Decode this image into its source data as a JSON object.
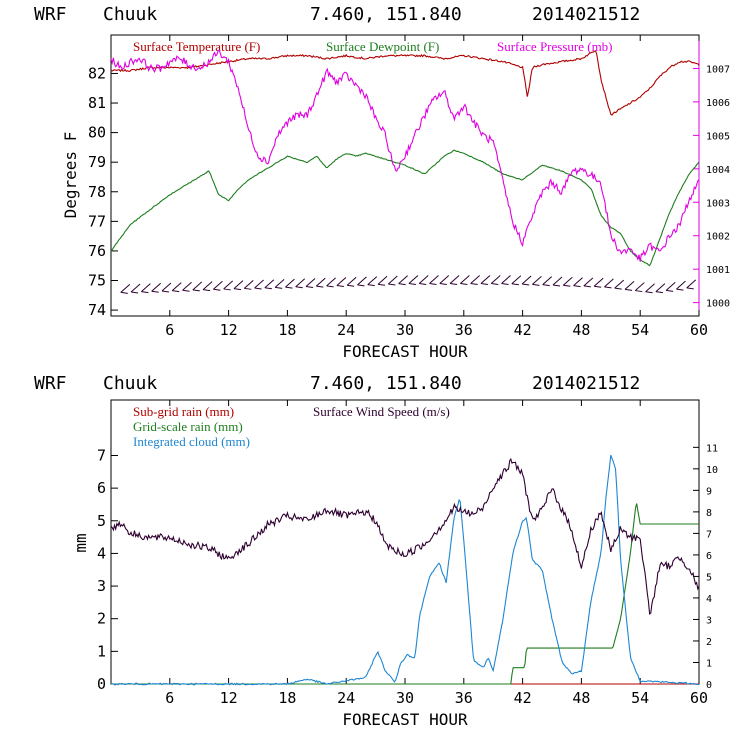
{
  "colors": {
    "temp": "#b00000",
    "dew": "#1e7d1e",
    "pressure": "#e000e0",
    "wind": "#2e0030",
    "subgrid": "#b00000",
    "gridscale": "#1e7d1e",
    "cloud": "#1f86d2"
  },
  "chart_data": [
    {
      "type": "line",
      "model_label": "WRF",
      "station": "Chuuk",
      "coords": "7.460, 151.840",
      "init_time": "2014021512",
      "xlabel": "FORECAST HOUR",
      "ylabel": "Degrees F",
      "xlim": [
        0,
        60
      ],
      "ylim": [
        73.8,
        83.3
      ],
      "y2lim": [
        999.6,
        1008.0
      ],
      "xticks": [
        "6",
        "12",
        "18",
        "24",
        "30",
        "36",
        "42",
        "48",
        "54",
        "60"
      ],
      "yticks": [
        "74",
        "75",
        "76",
        "77",
        "78",
        "79",
        "80",
        "81",
        "82"
      ],
      "y2ticks": [
        "1000",
        "1001",
        "1002",
        "1003",
        "1004",
        "1005",
        "1006",
        "1007"
      ],
      "legend": [
        "Surface Temperature (F)",
        "Surface Dewpoint (F)",
        "Surface Pressure (mb)"
      ],
      "series": [
        {
          "name": "Surface Temperature (F)",
          "axis": "left",
          "x": [
            0,
            2,
            4,
            6,
            8,
            10,
            12,
            14,
            16,
            18,
            20,
            22,
            24,
            26,
            28,
            30,
            32,
            34,
            36,
            38,
            40,
            42,
            42.5,
            43,
            44,
            46,
            48,
            49.5,
            50,
            51,
            52,
            53,
            54,
            55,
            56,
            57,
            58,
            59,
            60
          ],
          "values": [
            82.1,
            82.1,
            82.2,
            82.2,
            82.2,
            82.3,
            82.4,
            82.5,
            82.5,
            82.6,
            82.6,
            82.5,
            82.6,
            82.5,
            82.6,
            82.6,
            82.6,
            82.5,
            82.6,
            82.5,
            82.4,
            82.2,
            81.2,
            82.2,
            82.3,
            82.4,
            82.5,
            82.8,
            81.8,
            80.6,
            80.8,
            81.0,
            81.2,
            81.5,
            81.9,
            82.2,
            82.4,
            82.4,
            82.3
          ]
        },
        {
          "name": "Surface Dewpoint (F)",
          "axis": "left",
          "x": [
            0,
            2,
            4,
            6,
            8,
            10,
            11,
            12,
            13,
            14,
            16,
            18,
            19,
            20,
            21,
            22,
            23,
            24,
            25,
            26,
            28,
            30,
            32,
            34,
            35,
            36,
            38,
            40,
            42,
            44,
            46,
            48,
            49,
            50,
            51,
            52,
            53,
            54,
            55,
            56,
            57,
            58,
            59,
            60
          ],
          "values": [
            76.0,
            76.9,
            77.4,
            77.9,
            78.3,
            78.7,
            77.9,
            77.7,
            78.1,
            78.4,
            78.8,
            79.2,
            79.1,
            79.0,
            79.2,
            78.8,
            79.1,
            79.3,
            79.2,
            79.3,
            79.1,
            78.9,
            78.6,
            79.2,
            79.4,
            79.3,
            79.0,
            78.6,
            78.4,
            78.9,
            78.7,
            78.4,
            78.1,
            77.2,
            76.8,
            76.6,
            76.0,
            75.7,
            75.5,
            76.4,
            77.3,
            78.0,
            78.6,
            79.0
          ]
        },
        {
          "name": "Surface Pressure (mb)",
          "axis": "right",
          "x": [
            0,
            1,
            2,
            3,
            4,
            5,
            6,
            7,
            8,
            9,
            10,
            11,
            12,
            13,
            14,
            15,
            16,
            17,
            18,
            19,
            20,
            21,
            22,
            23,
            24,
            25,
            26,
            27,
            28,
            29,
            30,
            31,
            32,
            33,
            34,
            35,
            36,
            37,
            38,
            39,
            40,
            41,
            42,
            43,
            44,
            45,
            46,
            47,
            48,
            49,
            50,
            51,
            52,
            53,
            54,
            55,
            56,
            57,
            58,
            59,
            60
          ],
          "values": [
            1007.3,
            1007.0,
            1007.2,
            1007.3,
            1007.0,
            1007.0,
            1007.2,
            1007.3,
            1007.1,
            1007.0,
            1007.2,
            1007.5,
            1007.2,
            1006.4,
            1005.2,
            1004.4,
            1004.2,
            1005.0,
            1005.4,
            1005.6,
            1005.6,
            1006.2,
            1006.9,
            1006.6,
            1006.8,
            1006.5,
            1006.2,
            1005.5,
            1005.0,
            1003.9,
            1004.4,
            1005.0,
            1005.6,
            1006.1,
            1006.3,
            1005.5,
            1005.9,
            1005.4,
            1005.0,
            1004.8,
            1003.6,
            1002.4,
            1001.8,
            1002.6,
            1003.3,
            1003.6,
            1003.3,
            1003.9,
            1004.0,
            1003.8,
            1003.6,
            1002.0,
            1001.5,
            1001.6,
            1001.3,
            1001.7,
            1001.5,
            1002.0,
            1002.3,
            1003.1,
            1003.6
          ]
        },
        {
          "name": "Wind barbs",
          "axis": "left",
          "x": [
            1,
            10,
            20,
            30,
            40,
            50,
            55,
            60
          ],
          "values": [
            74.6,
            74.7,
            74.8,
            74.9,
            74.9,
            74.8,
            74.6,
            74.8
          ]
        }
      ]
    },
    {
      "type": "line",
      "model_label": "WRF",
      "station": "Chuuk",
      "coords": "7.460, 151.840",
      "init_time": "2014021512",
      "xlabel": "FORECAST HOUR",
      "ylabel": "mm",
      "xlim": [
        0,
        60
      ],
      "ylim": [
        0,
        8.7
      ],
      "y2lim": [
        0,
        13.2
      ],
      "xticks": [
        "6",
        "12",
        "18",
        "24",
        "30",
        "36",
        "42",
        "48",
        "54",
        "60"
      ],
      "yticks": [
        "0",
        "1",
        "2",
        "3",
        "4",
        "5",
        "6",
        "7"
      ],
      "y2ticks": [
        "0",
        "1",
        "2",
        "3",
        "4",
        "5",
        "6",
        "7",
        "8",
        "9",
        "10",
        "11"
      ],
      "legend": [
        "Sub-grid rain (mm)",
        "Grid-scale rain (mm)",
        "Integrated cloud (mm)",
        "Surface Wind Speed (m/s)"
      ],
      "series": [
        {
          "name": "Sub-grid rain (mm)",
          "axis": "left",
          "x": [
            0,
            60
          ],
          "values": [
            0,
            0
          ]
        },
        {
          "name": "Grid-scale rain (mm)",
          "axis": "left",
          "x": [
            0,
            40.8,
            41,
            42.2,
            42.4,
            51.2,
            52,
            53,
            53.6,
            54,
            60
          ],
          "values": [
            0,
            0,
            0.5,
            0.5,
            1.1,
            1.1,
            2.0,
            4.0,
            5.6,
            4.9,
            4.9
          ]
        },
        {
          "name": "Integrated cloud (mm)",
          "axis": "left",
          "x": [
            0,
            18,
            20,
            22,
            26,
            27.2,
            28,
            29,
            29.5,
            30.2,
            31,
            31.5,
            32.5,
            33.5,
            34.2,
            35,
            35.6,
            36,
            37,
            38,
            38.5,
            39,
            40,
            41,
            42,
            42.4,
            43,
            44,
            45,
            46,
            47,
            48,
            48.5,
            49,
            50,
            50.5,
            51,
            51.5,
            52,
            53,
            54,
            60
          ],
          "values": [
            0,
            0,
            0.15,
            0,
            0.2,
            1.0,
            0.4,
            0.05,
            0.6,
            0.9,
            0.8,
            2.1,
            3.3,
            3.7,
            3.1,
            5.1,
            5.7,
            4.4,
            0.7,
            0.5,
            0.8,
            0.4,
            2.0,
            4.0,
            5.0,
            5.1,
            3.8,
            3.5,
            2.0,
            0.7,
            0.3,
            0.4,
            1.5,
            2.6,
            4.0,
            5.7,
            7.0,
            6.6,
            3.8,
            0.8,
            0.1,
            0
          ]
        },
        {
          "name": "Surface Wind Speed (m/s)",
          "axis": "right",
          "x": [
            0,
            1,
            2,
            4,
            6,
            8,
            10,
            12,
            13,
            14,
            16,
            18,
            20,
            22,
            24,
            26,
            27,
            28,
            29,
            30,
            32,
            34,
            35,
            36,
            37,
            38,
            39,
            40,
            41,
            42,
            43,
            44,
            45,
            46,
            47,
            48,
            49,
            50,
            51,
            52,
            53,
            54,
            55,
            56,
            57,
            58,
            59,
            60
          ],
          "values": [
            7.2,
            7.5,
            7.0,
            6.8,
            6.8,
            6.5,
            6.3,
            5.8,
            6.2,
            6.5,
            7.4,
            7.8,
            7.6,
            8.1,
            7.8,
            8.0,
            7.6,
            6.5,
            6.2,
            6.0,
            6.5,
            7.5,
            8.2,
            8.0,
            7.9,
            8.2,
            9.2,
            9.8,
            10.4,
            9.7,
            7.6,
            8.1,
            9.1,
            8.1,
            7.2,
            5.4,
            7.2,
            8.0,
            6.2,
            7.2,
            6.8,
            6.8,
            3.2,
            5.5,
            5.5,
            5.9,
            5.4,
            4.4
          ]
        }
      ]
    }
  ]
}
